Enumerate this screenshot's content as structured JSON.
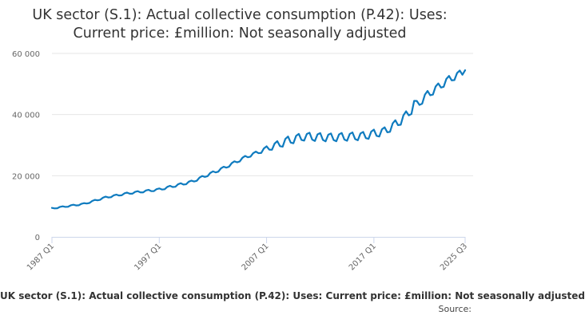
{
  "title_line1": "UK sector (S.1): Actual collective consumption (P.42): Uses:",
  "title_line2": "Current price: £million: Not seasonally adjusted",
  "legend_label": "UK sector (S.1): Actual collective consumption (P.42): Uses: Current price: £million: Not seasonally adjusted",
  "source_label": "Source:",
  "colors": {
    "line": "#0f7bbf",
    "grid": "#e6e6e6",
    "axis": "#ccd6eb"
  },
  "chart_data": {
    "type": "line",
    "title": "UK sector (S.1): Actual collective consumption (P.42): Uses: Current price: £million: Not seasonally adjusted",
    "xlabel": "",
    "ylabel": "",
    "ylim": [
      0,
      60000
    ],
    "y_ticks": [
      0,
      20000,
      40000,
      60000
    ],
    "y_tick_labels": [
      "0",
      "20 000",
      "40 000",
      "60 000"
    ],
    "x_ticks": [
      "1987 Q1",
      "1997 Q1",
      "2007 Q1",
      "2017 Q1",
      "2025 Q3"
    ],
    "x_range": [
      "1987 Q1",
      "2025 Q3"
    ],
    "series": [
      {
        "name": "UK sector (S.1): Actual collective consumption (P.42): Uses: Current price: £million: Not seasonally adjusted",
        "anchors": [
          {
            "year": 1987.0,
            "value": 9300
          },
          {
            "year": 1990.0,
            "value": 10800
          },
          {
            "year": 1992.0,
            "value": 12900
          },
          {
            "year": 1994.0,
            "value": 14200
          },
          {
            "year": 1997.0,
            "value": 15500
          },
          {
            "year": 2000.0,
            "value": 18000
          },
          {
            "year": 2003.0,
            "value": 22500
          },
          {
            "year": 2005.0,
            "value": 26000
          },
          {
            "year": 2007.0,
            "value": 28800
          },
          {
            "year": 2009.0,
            "value": 31500
          },
          {
            "year": 2010.5,
            "value": 32800
          },
          {
            "year": 2013.0,
            "value": 32500
          },
          {
            "year": 2016.0,
            "value": 33000
          },
          {
            "year": 2018.0,
            "value": 34500
          },
          {
            "year": 2019.5,
            "value": 38000
          },
          {
            "year": 2020.5,
            "value": 41500
          },
          {
            "year": 2022.0,
            "value": 46500
          },
          {
            "year": 2024.0,
            "value": 51500
          },
          {
            "year": 2025.5,
            "value": 54200
          }
        ],
        "seasonal_amplitude": [
          {
            "year": 1987.0,
            "value": 300
          },
          {
            "year": 2006.0,
            "value": 800
          },
          {
            "year": 2008.5,
            "value": 2200
          },
          {
            "year": 2020.0,
            "value": 2200
          },
          {
            "year": 2025.5,
            "value": 1800
          }
        ],
        "notable_points": [
          {
            "quarter": "2020 Q4",
            "value": 44500
          },
          {
            "quarter": "2025 Q3",
            "value": 54500
          }
        ]
      }
    ]
  }
}
